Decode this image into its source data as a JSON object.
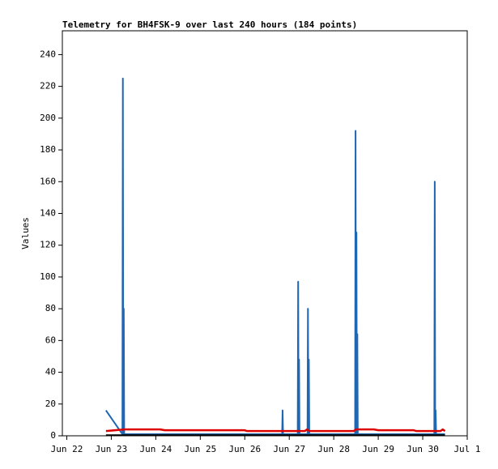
{
  "chart_data": {
    "type": "line",
    "title": "Telemetry for BH4FSK-9 over last 240 hours (184 points)",
    "y_label": "Values",
    "xlim": [
      21.9,
      31
    ],
    "xticks": [
      {
        "value": 22,
        "label": "Jun 22"
      },
      {
        "value": 23,
        "label": "Jun 23"
      },
      {
        "value": 24,
        "label": "Jun 24"
      },
      {
        "value": 25,
        "label": "Jun 25"
      },
      {
        "value": 26,
        "label": "Jun 26"
      },
      {
        "value": 27,
        "label": "Jun 27"
      },
      {
        "value": 28,
        "label": "Jun 28"
      },
      {
        "value": 29,
        "label": "Jun 29"
      },
      {
        "value": 30,
        "label": "Jun 30"
      },
      {
        "value": 31,
        "label": "Jul 1"
      }
    ],
    "ylim": [
      0,
      255
    ],
    "yticks": [
      0,
      20,
      40,
      60,
      80,
      100,
      120,
      140,
      160,
      180,
      200,
      220,
      240
    ],
    "grid": false,
    "series": [
      {
        "color": "#1f66b3",
        "width": 2,
        "x": [
          22.88,
          23.25,
          23.26,
          23.27,
          23.28,
          23.29,
          26.84,
          26.85,
          26.86,
          27.19,
          27.2,
          27.21,
          27.22,
          27.23,
          27.41,
          27.42,
          27.43,
          27.44,
          27.45,
          28.48,
          28.49,
          28.5,
          28.51,
          28.52,
          28.53,
          28.54,
          30.26,
          30.27,
          30.28,
          30.29,
          30.3,
          30.5
        ],
        "values": [
          16,
          1,
          225,
          1,
          80,
          1,
          1,
          16,
          1,
          1,
          97,
          1,
          48,
          1,
          1,
          80,
          1,
          48,
          1,
          1,
          192,
          1,
          128,
          1,
          64,
          1,
          1,
          160,
          1,
          16,
          1,
          1
        ]
      },
      {
        "color": "#dd0000",
        "width": 2.5,
        "x": [
          22.88,
          23.3,
          24.1,
          24.2,
          26,
          26.05,
          27.35,
          27.4,
          27.45,
          28.45,
          28.5,
          28.9,
          29,
          29.8,
          29.85,
          30.4,
          30.45,
          30.5
        ],
        "values": [
          3,
          4,
          4,
          3.5,
          3.5,
          3,
          3,
          4,
          3,
          3,
          4,
          4,
          3.5,
          3.5,
          3,
          3,
          4,
          3
        ]
      },
      {
        "color": "#000000",
        "width": 1.5,
        "x": [
          22.88,
          30.5
        ],
        "values": [
          0.5,
          0.5
        ]
      }
    ]
  }
}
